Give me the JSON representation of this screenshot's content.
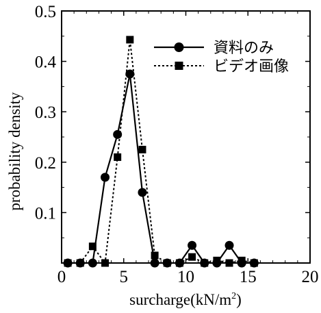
{
  "chart_data": {
    "type": "line",
    "xlabel": "surcharge(kN/m",
    "xlabel_sup": "2",
    "xlabel_close": ")",
    "ylabel": "probability density",
    "xlim": [
      0,
      20
    ],
    "ylim": [
      0,
      0.5
    ],
    "x_ticks": [
      0,
      5,
      10,
      15,
      20
    ],
    "x_tick_labels": [
      "0",
      "5",
      "10",
      "15",
      "20"
    ],
    "y_ticks": [
      0.1,
      0.2,
      0.3,
      0.4,
      0.5
    ],
    "y_tick_labels": [
      "0.1",
      "0.2",
      "0.3",
      "0.4",
      "0.5"
    ],
    "grid": false,
    "legend_position": "top-right",
    "series": [
      {
        "name": "資料のみ",
        "style": "solid",
        "marker": "circle",
        "color": "#000000",
        "points": [
          [
            0.5,
            0
          ],
          [
            1.5,
            0
          ],
          [
            2.5,
            0
          ],
          [
            3.5,
            0.17
          ],
          [
            4.5,
            0.255
          ],
          [
            5.5,
            0.375
          ],
          [
            6.5,
            0.14
          ],
          [
            7.5,
            0
          ],
          [
            8.5,
            0
          ],
          [
            9.5,
            0
          ],
          [
            10.5,
            0.035
          ],
          [
            11.5,
            0
          ],
          [
            12.5,
            0
          ],
          [
            13.5,
            0.035
          ],
          [
            14.5,
            0
          ],
          [
            15.5,
            0
          ]
        ]
      },
      {
        "name": "ビデオ画像",
        "style": "dotted",
        "marker": "square",
        "color": "#000000",
        "points": [
          [
            0.5,
            0
          ],
          [
            1.5,
            0
          ],
          [
            2.5,
            0.033
          ],
          [
            3.5,
            0
          ],
          [
            4.5,
            0.21
          ],
          [
            5.5,
            0.443
          ],
          [
            6.5,
            0.225
          ],
          [
            7.5,
            0.015
          ],
          [
            8.5,
            0
          ],
          [
            9.5,
            0
          ],
          [
            10.5,
            0.012
          ],
          [
            11.5,
            0
          ],
          [
            12.5,
            0.005
          ],
          [
            13.5,
            0
          ],
          [
            14.5,
            0.005
          ],
          [
            15.5,
            0
          ]
        ]
      }
    ]
  }
}
